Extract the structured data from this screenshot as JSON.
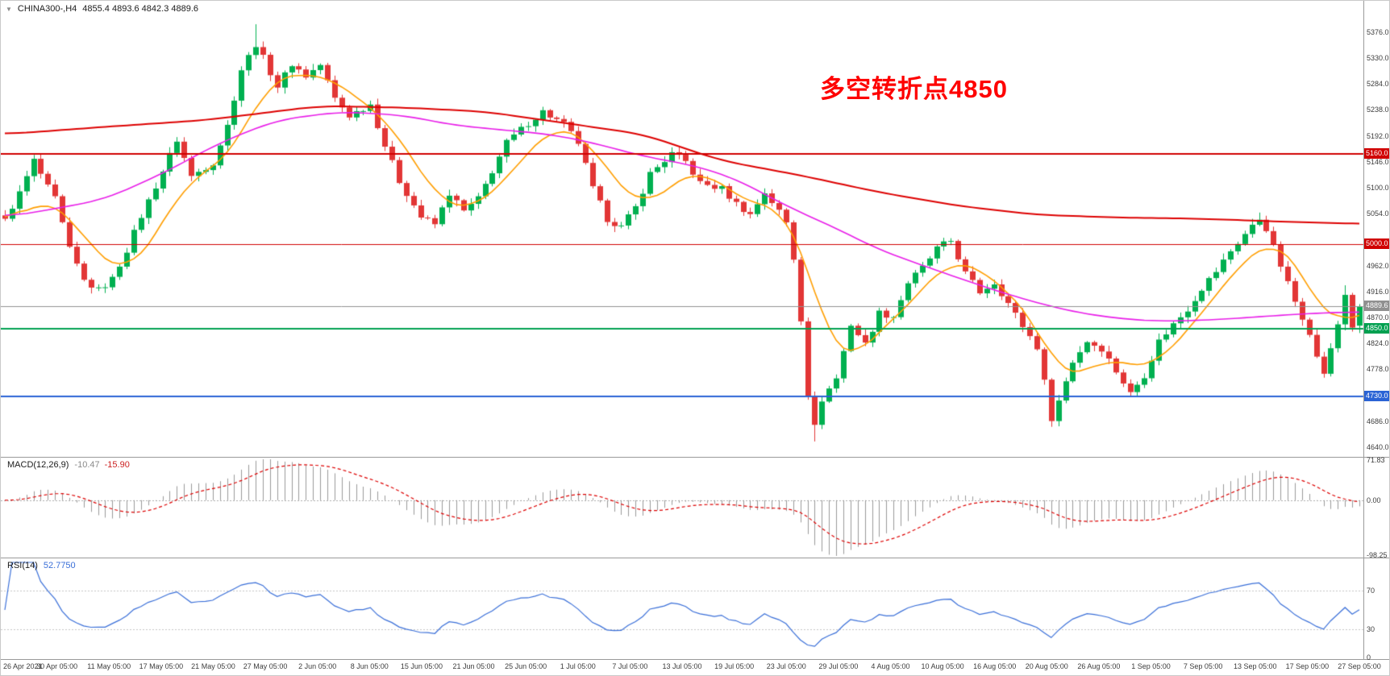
{
  "header": {
    "collapse_icon": "▼",
    "symbol_period": "CHINA300-,H4",
    "ohlc": "4855.4 4893.6 4842.3 4889.6"
  },
  "annotation": {
    "text": "多空转折点4850",
    "color": "#fe0000"
  },
  "indicators": {
    "macd": {
      "label": "MACD(12,26,9)",
      "value_main": "-10.47",
      "value_signal": "-15.90",
      "scale_labels": [
        "71.83",
        "0.00",
        "-98.25"
      ]
    },
    "rsi": {
      "label": "RSI(14)",
      "value": "52.7750",
      "scale_labels": [
        "70",
        "30",
        "0"
      ]
    }
  },
  "chart_data": {
    "type": "candlestick",
    "symbol": "CHINA300-",
    "timeframe": "H4",
    "title": "CHINA300- H4 candlestick chart with MA(fast/medium/slow), horizontal levels, MACD and RSI",
    "n_candles": 190,
    "ylim": [
      4627,
      5413
    ],
    "last_candle": {
      "open": 4855.4,
      "high": 4893.6,
      "low": 4842.3,
      "close": 4889.6
    },
    "close_waypoints": [
      [
        0,
        5045
      ],
      [
        2,
        5090
      ],
      [
        4,
        5148
      ],
      [
        6,
        5100
      ],
      [
        7,
        5080
      ],
      [
        9,
        4990
      ],
      [
        11,
        4935
      ],
      [
        13,
        4918
      ],
      [
        15,
        4938
      ],
      [
        17,
        4990
      ],
      [
        19,
        5050
      ],
      [
        22,
        5130
      ],
      [
        24,
        5185
      ],
      [
        26,
        5120
      ],
      [
        29,
        5145
      ],
      [
        31,
        5210
      ],
      [
        33,
        5310
      ],
      [
        35,
        5355
      ],
      [
        36,
        5330
      ],
      [
        38,
        5280
      ],
      [
        40,
        5320
      ],
      [
        42,
        5298
      ],
      [
        44,
        5318
      ],
      [
        46,
        5258
      ],
      [
        48,
        5228
      ],
      [
        51,
        5248
      ],
      [
        53,
        5175
      ],
      [
        55,
        5112
      ],
      [
        58,
        5048
      ],
      [
        60,
        5035
      ],
      [
        62,
        5090
      ],
      [
        64,
        5058
      ],
      [
        66,
        5080
      ],
      [
        68,
        5130
      ],
      [
        70,
        5180
      ],
      [
        73,
        5215
      ],
      [
        75,
        5235
      ],
      [
        78,
        5212
      ],
      [
        80,
        5180
      ],
      [
        82,
        5098
      ],
      [
        84,
        5045
      ],
      [
        86,
        5030
      ],
      [
        88,
        5065
      ],
      [
        90,
        5125
      ],
      [
        93,
        5160
      ],
      [
        95,
        5146
      ],
      [
        97,
        5108
      ],
      [
        100,
        5098
      ],
      [
        102,
        5072
      ],
      [
        104,
        5052
      ],
      [
        106,
        5092
      ],
      [
        108,
        5058
      ],
      [
        109,
        5038
      ],
      [
        110,
        4975
      ],
      [
        111,
        4868
      ],
      [
        112,
        4735
      ],
      [
        113,
        4675
      ],
      [
        114,
        4725
      ],
      [
        116,
        4762
      ],
      [
        118,
        4858
      ],
      [
        120,
        4822
      ],
      [
        122,
        4878
      ],
      [
        124,
        4872
      ],
      [
        126,
        4932
      ],
      [
        128,
        4958
      ],
      [
        130,
        4992
      ],
      [
        132,
        5006
      ],
      [
        134,
        4948
      ],
      [
        136,
        4915
      ],
      [
        138,
        4932
      ],
      [
        140,
        4895
      ],
      [
        142,
        4855
      ],
      [
        144,
        4818
      ],
      [
        145,
        4755
      ],
      [
        146,
        4692
      ],
      [
        147,
        4722
      ],
      [
        149,
        4792
      ],
      [
        151,
        4828
      ],
      [
        153,
        4815
      ],
      [
        155,
        4775
      ],
      [
        157,
        4735
      ],
      [
        159,
        4768
      ],
      [
        161,
        4828
      ],
      [
        163,
        4858
      ],
      [
        165,
        4885
      ],
      [
        167,
        4922
      ],
      [
        169,
        4952
      ],
      [
        171,
        4988
      ],
      [
        173,
        5018
      ],
      [
        175,
        5045
      ],
      [
        176,
        5028
      ],
      [
        178,
        4962
      ],
      [
        180,
        4898
      ],
      [
        182,
        4845
      ],
      [
        183,
        4798
      ],
      [
        184,
        4772
      ],
      [
        185,
        4812
      ],
      [
        186,
        4858
      ],
      [
        187,
        4910
      ],
      [
        188,
        4852
      ],
      [
        189,
        4889.6
      ]
    ],
    "special_wicks": {
      "35": {
        "high": 5390
      },
      "113": {
        "low": 4650
      },
      "146": {
        "low": 4676
      },
      "175": {
        "high": 5056
      },
      "187": {
        "high": 4927
      }
    },
    "moving_averages": [
      {
        "name": "ma-fast-orange",
        "color": "#ff9e00",
        "width": 1.6,
        "waypoints": [
          [
            0,
            5035
          ],
          [
            5,
            5080
          ],
          [
            9,
            5055
          ],
          [
            13,
            4975
          ],
          [
            17,
            4950
          ],
          [
            21,
            5010
          ],
          [
            25,
            5110
          ],
          [
            29,
            5130
          ],
          [
            33,
            5190
          ],
          [
            37,
            5295
          ],
          [
            41,
            5300
          ],
          [
            45,
            5300
          ],
          [
            49,
            5260
          ],
          [
            53,
            5225
          ],
          [
            57,
            5150
          ],
          [
            61,
            5070
          ],
          [
            65,
            5062
          ],
          [
            69,
            5100
          ],
          [
            73,
            5165
          ],
          [
            77,
            5212
          ],
          [
            81,
            5190
          ],
          [
            85,
            5115
          ],
          [
            89,
            5062
          ],
          [
            93,
            5105
          ],
          [
            97,
            5135
          ],
          [
            101,
            5095
          ],
          [
            105,
            5068
          ],
          [
            109,
            5062
          ],
          [
            112,
            4965
          ],
          [
            115,
            4820
          ],
          [
            118,
            4788
          ],
          [
            121,
            4838
          ],
          [
            124,
            4862
          ],
          [
            128,
            4922
          ],
          [
            132,
            4972
          ],
          [
            136,
            4958
          ],
          [
            140,
            4915
          ],
          [
            144,
            4858
          ],
          [
            147,
            4768
          ],
          [
            150,
            4762
          ],
          [
            153,
            4802
          ],
          [
            157,
            4782
          ],
          [
            161,
            4788
          ],
          [
            165,
            4848
          ],
          [
            169,
            4908
          ],
          [
            173,
            4975
          ],
          [
            177,
            5008
          ],
          [
            181,
            4960
          ],
          [
            183,
            4890
          ],
          [
            185,
            4855
          ],
          [
            187,
            4860
          ],
          [
            189,
            4898
          ]
        ]
      },
      {
        "name": "ma-medium-magenta",
        "color": "#e81ee8",
        "width": 1.6,
        "waypoints": [
          [
            0,
            5048
          ],
          [
            8,
            5065
          ],
          [
            14,
            5080
          ],
          [
            22,
            5125
          ],
          [
            30,
            5180
          ],
          [
            38,
            5220
          ],
          [
            47,
            5235
          ],
          [
            56,
            5228
          ],
          [
            62,
            5212
          ],
          [
            69,
            5203
          ],
          [
            76,
            5195
          ],
          [
            82,
            5180
          ],
          [
            89,
            5156
          ],
          [
            96,
            5140
          ],
          [
            102,
            5116
          ],
          [
            109,
            5068
          ],
          [
            116,
            5028
          ],
          [
            122,
            4990
          ],
          [
            129,
            4958
          ],
          [
            136,
            4927
          ],
          [
            142,
            4903
          ],
          [
            149,
            4880
          ],
          [
            156,
            4867
          ],
          [
            162,
            4863
          ],
          [
            169,
            4866
          ],
          [
            176,
            4872
          ],
          [
            182,
            4877
          ],
          [
            189,
            4880
          ]
        ]
      },
      {
        "name": "ma-slow-red",
        "color": "#dd0000",
        "width": 2,
        "waypoints": [
          [
            0,
            5195
          ],
          [
            14,
            5208
          ],
          [
            28,
            5220
          ],
          [
            44,
            5245
          ],
          [
            56,
            5242
          ],
          [
            67,
            5235
          ],
          [
            78,
            5215
          ],
          [
            89,
            5195
          ],
          [
            100,
            5148
          ],
          [
            111,
            5122
          ],
          [
            122,
            5092
          ],
          [
            133,
            5068
          ],
          [
            144,
            5052
          ],
          [
            156,
            5047
          ],
          [
            167,
            5045
          ],
          [
            178,
            5040
          ],
          [
            189,
            5036
          ]
        ]
      }
    ],
    "levels": [
      {
        "price": 5160.0,
        "color": "#d00000",
        "width": 2,
        "label": "5160.0"
      },
      {
        "price": 5000.0,
        "color": "#d00000",
        "width": 1,
        "label": "5000.0"
      },
      {
        "price": 4889.6,
        "color": "#909090",
        "width": 1,
        "label": "4889.6"
      },
      {
        "price": 4850.0,
        "color": "#00a050",
        "width": 2,
        "label": "4850.0"
      },
      {
        "price": 4730.0,
        "color": "#2a63d5",
        "width": 2,
        "label": "4730.0"
      }
    ],
    "price_ticks": [
      5376,
      5330,
      5284,
      5238,
      5192,
      5146,
      5100,
      5054,
      4962,
      4916,
      4870,
      4824,
      4778,
      4686,
      4640
    ],
    "x_labels": [
      "26 Apr 2021",
      "30 Apr 05:00",
      "11 May 05:00",
      "17 May 05:00",
      "21 May 05:00",
      "27 May 05:00",
      "2 Jun 05:00",
      "8 Jun 05:00",
      "15 Jun 05:00",
      "21 Jun 05:00",
      "25 Jun 05:00",
      "1 Jul 05:00",
      "7 Jul 05:00",
      "13 Jul 05:00",
      "19 Jul 05:00",
      "23 Jul 05:00",
      "29 Jul 05:00",
      "4 Aug 05:00",
      "10 Aug 05:00",
      "16 Aug 05:00",
      "20 Aug 05:00",
      "26 Aug 05:00",
      "1 Sep 05:00",
      "7 Sep 05:00",
      "13 Sep 05:00",
      "17 Sep 05:00",
      "27 Sep 05:00"
    ],
    "macd": {
      "params": [
        12,
        26,
        9
      ],
      "ylim": [
        -98.25,
        71.83
      ],
      "scale_ticks": [
        71.83,
        0,
        -98.25
      ],
      "current_main": -10.47,
      "current_signal": -15.9
    },
    "rsi": {
      "period": 14,
      "ylim": [
        0,
        100
      ],
      "levels": [
        70,
        30
      ],
      "scale_ticks": [
        70,
        30,
        0
      ],
      "current": 52.775
    },
    "colors": {
      "bull": "#00b050",
      "bear": "#e23636",
      "macd_hist": "#9a9a9a",
      "macd_signal": "#dd0000",
      "rsi": "#3a6fd8",
      "axis_text": "#3c3c3c",
      "background": "#ffffff"
    }
  }
}
